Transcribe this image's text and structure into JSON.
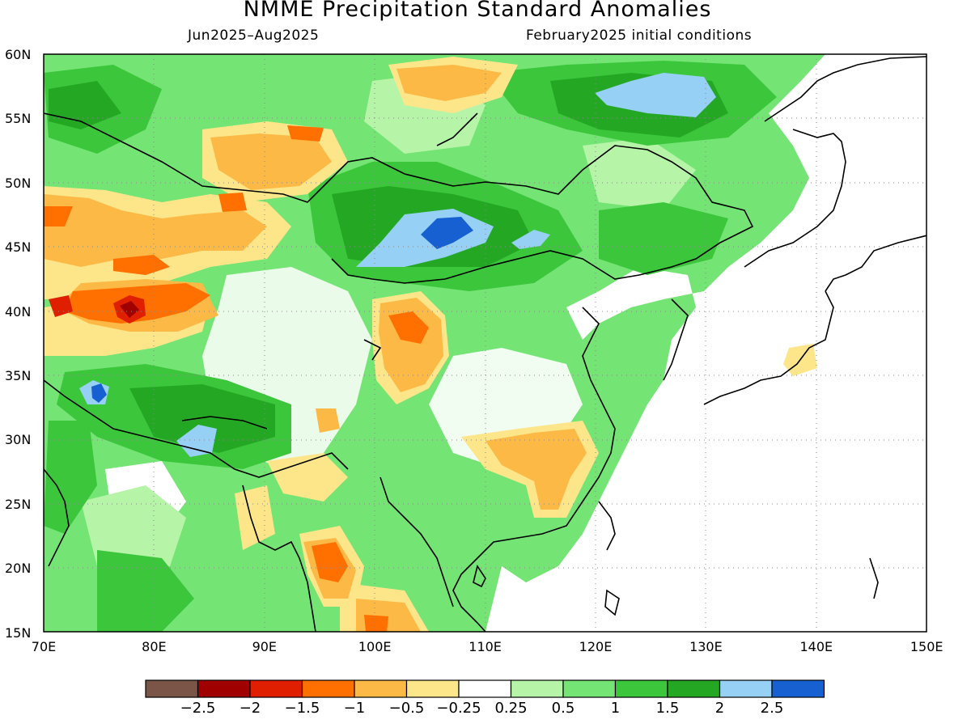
{
  "title": "NMME Precipitation Standard Anomalies",
  "subtitle_left": "Jun2025–Aug2025",
  "subtitle_right": "February2025 initial conditions",
  "lat_labels": [
    "60N",
    "55N",
    "50N",
    "45N",
    "40N",
    "35N",
    "30N",
    "25N",
    "20N",
    "15N"
  ],
  "lon_labels": [
    "70E",
    "80E",
    "90E",
    "100E",
    "110E",
    "120E",
    "130E",
    "140E",
    "150E"
  ],
  "legend": {
    "colors": [
      "#7a5548",
      "#a00000",
      "#e01e00",
      "#ff7000",
      "#fdb946",
      "#fde68a",
      "#ffffff",
      "#b6f5a7",
      "#74e474",
      "#3cc63c",
      "#24a824",
      "#96d0f5",
      "#1760d2"
    ],
    "labels": [
      "−2.5",
      "−2",
      "−1.5",
      "−1",
      "−0.5",
      "−0.25",
      "0.25",
      "0.5",
      "1",
      "1.5",
      "2",
      "2.5"
    ]
  }
}
